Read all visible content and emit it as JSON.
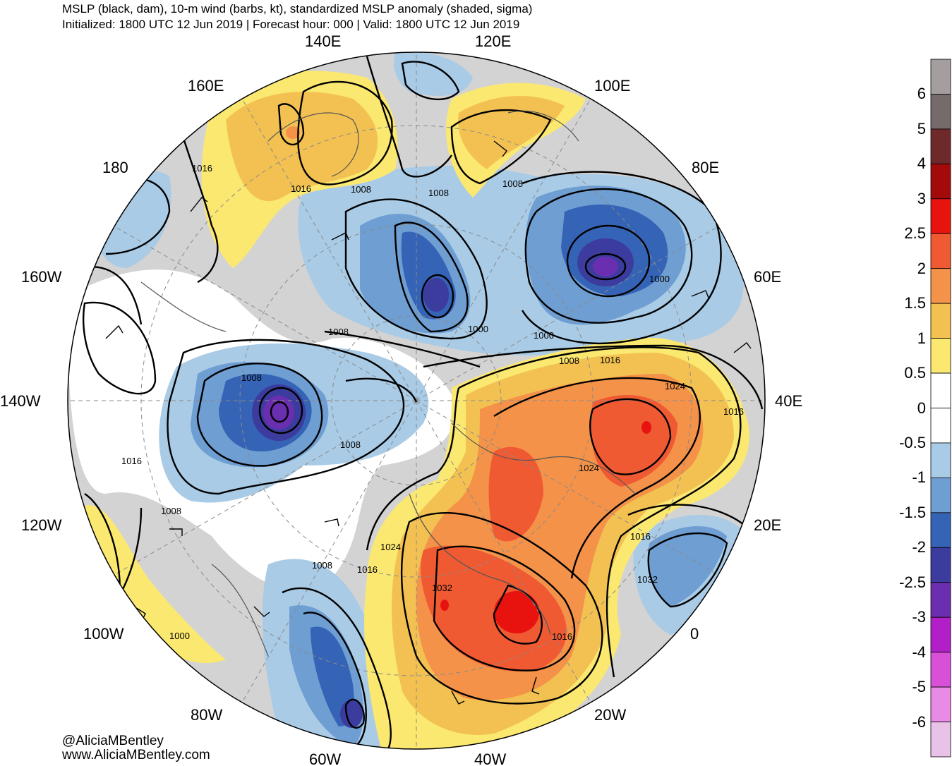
{
  "header": {
    "title": "MSLP (black, dam), 10-m wind (barbs, kt), standardized MSLP anomaly (shaded, sigma)",
    "subtitle": "Initialized: 1800 UTC 12 Jun 2019 | Forecast hour: 000 | Valid: 1800 UTC 12 Jun 2019"
  },
  "map": {
    "projection": "north-polar-stereographic",
    "longitude_labels": [
      "140E",
      "120E",
      "160E",
      "100E",
      "180",
      "80E",
      "160W",
      "60E",
      "140W",
      "40E",
      "120W",
      "20E",
      "100W",
      "0",
      "80W",
      "20W",
      "60W",
      "40W"
    ],
    "isobar_labels": [
      "1016",
      "1016",
      "1008",
      "1008",
      "1008",
      "1000",
      "1000",
      "1000",
      "1008",
      "1016",
      "1008",
      "1024",
      "1008",
      "1016",
      "1024",
      "1016",
      "1008",
      "1016",
      "1024",
      "1008",
      "1016",
      "1032",
      "1008",
      "1032",
      "1016",
      "1000"
    ]
  },
  "colorbar": {
    "labels": [
      "6",
      "5",
      "4",
      "3",
      "2.5",
      "2",
      "1.5",
      "1",
      "0.5",
      "0",
      "-0.5",
      "-1",
      "-1.5",
      "-2",
      "-2.5",
      "-3",
      "-4",
      "-5",
      "-6"
    ],
    "colors": [
      "#a59e9e",
      "#756b6b",
      "#6e2a2a",
      "#a30a0a",
      "#e8120f",
      "#f05a33",
      "#f39248",
      "#f2c152",
      "#fbe870",
      "#ffffff",
      "#ffffff",
      "#a9cbe6",
      "#6e9ed2",
      "#3563b5",
      "#3c3c9e",
      "#6a2fb0",
      "#b21ec8",
      "#d84fd8",
      "#e98ae6",
      "#e9c2e8"
    ]
  },
  "credits": {
    "handle": "@AliciaMBentley",
    "website": "www.AliciaMBentley.com"
  }
}
